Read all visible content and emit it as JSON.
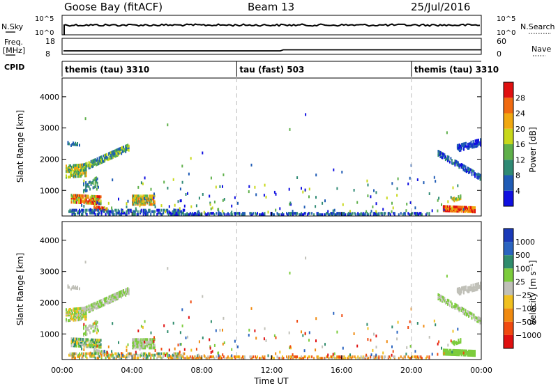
{
  "header": {
    "station": "Goose Bay (fitACF)",
    "beam": "Beam 13",
    "date": "25/Jul/2016"
  },
  "top_panels": {
    "nsky_label": "N.Sky",
    "nsky_ticks": [
      "10^5",
      "10^0"
    ],
    "nsearch_label": "N.Search",
    "nsearch_ticks": [
      "10^5",
      "10^0"
    ],
    "freq_label": "Freq.",
    "freq_unit": "[MHz]",
    "freq_ticks": [
      "18",
      "8"
    ],
    "nave_label": "Nave",
    "nave_ticks": [
      "60",
      "0"
    ],
    "cpid_label": "CPID"
  },
  "cpid_segments": [
    {
      "name": "themis (tau) 3310",
      "start": 0
    },
    {
      "name": "tau (fast) 503",
      "start": 10
    },
    {
      "name": "themis (tau) 3310",
      "start": 20
    }
  ],
  "chart_data": [
    {
      "type": "heatmap",
      "name": "power",
      "xlabel": "Time UT",
      "ylabel": "Slant Range [km]",
      "xlim": [
        0,
        24
      ],
      "ylim": [
        180,
        4600
      ],
      "x_ticks": [
        "00:00",
        "04:00",
        "08:00",
        "12:00",
        "16:00",
        "20:00",
        "00:00"
      ],
      "y_ticks": [
        "1000",
        "2000",
        "3000",
        "4000"
      ],
      "colorbar": {
        "label": "Power [dB]",
        "ticks": [
          "4",
          "8",
          "12",
          "16",
          "20",
          "24",
          "28"
        ],
        "colors": [
          "#1010e0",
          "#1f5bb5",
          "#2f8a74",
          "#5fb04a",
          "#c8d81a",
          "#f0a810",
          "#f06a10",
          "#e01010"
        ]
      }
    },
    {
      "type": "heatmap",
      "name": "velocity",
      "xlabel": "Time UT",
      "ylabel": "Slant Range [km]",
      "xlim": [
        0,
        24
      ],
      "ylim": [
        180,
        4600
      ],
      "x_ticks": [
        "00:00",
        "04:00",
        "08:00",
        "12:00",
        "16:00",
        "20:00",
        "00:00"
      ],
      "y_ticks": [
        "1000",
        "2000",
        "3000",
        "4000"
      ],
      "colorbar": {
        "label": "Velocity [m s⁻¹]",
        "ticks": [
          "1000",
          "500",
          "100",
          "25",
          "−25",
          "−100",
          "−500",
          "−1000"
        ],
        "colors": [
          "#1a3ab8",
          "#2a64c0",
          "#2f8c6c",
          "#7ccc3c",
          "#c0c0b8",
          "#f0c020",
          "#f08a10",
          "#f04a10",
          "#e01010"
        ]
      }
    }
  ]
}
